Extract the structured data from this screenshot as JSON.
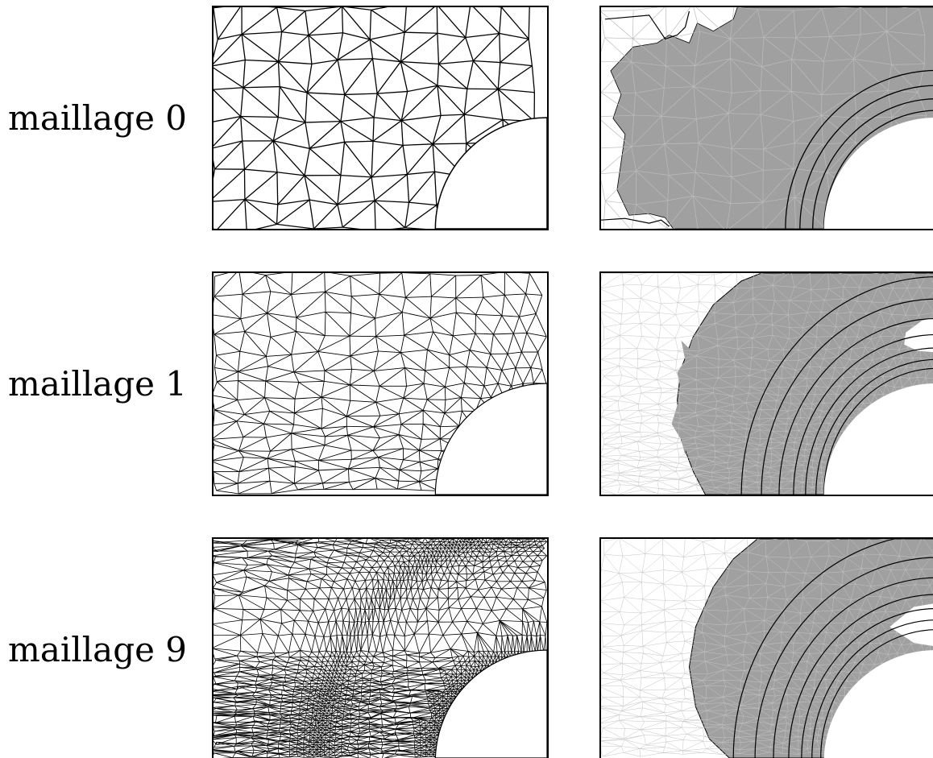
{
  "rows": [
    {
      "label": "maillage 0",
      "mesh_density": 0
    },
    {
      "label": "maillage 1",
      "mesh_density": 1
    },
    {
      "label": "maillage 9",
      "mesh_density": 9
    }
  ],
  "colors": {
    "mesh_line": "#000000",
    "field_fill": "#a0a0a0",
    "field_mesh_line": "#c8c8c8",
    "contour_line": "#000000",
    "background": "#ffffff"
  }
}
